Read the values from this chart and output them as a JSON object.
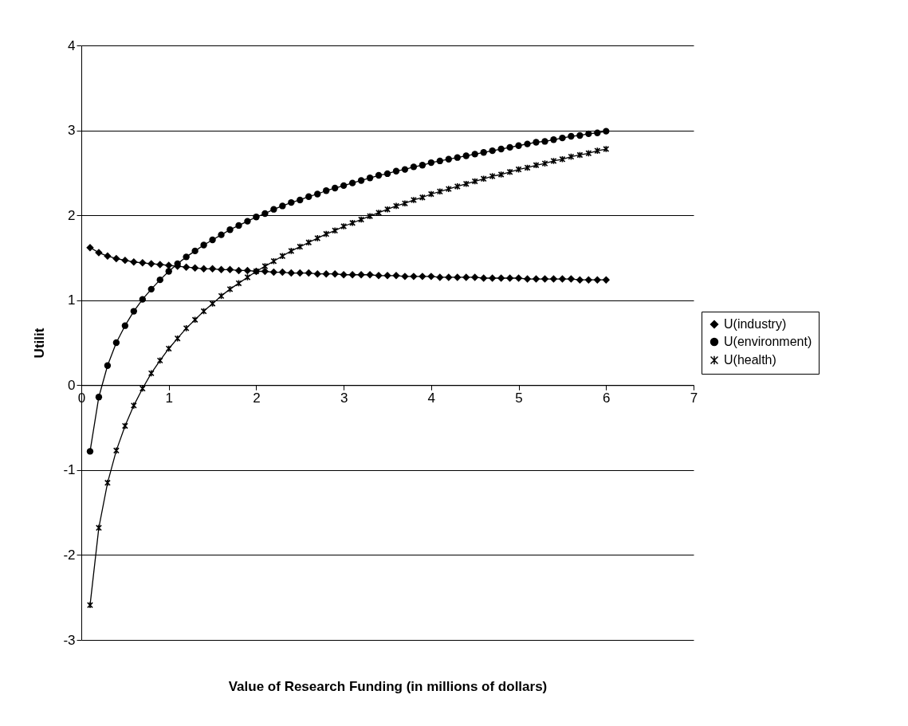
{
  "chart_data": {
    "type": "line",
    "xlabel": "Value of Research Funding (in millions of dollars)",
    "ylabel": "Utilit",
    "x": [
      0.1,
      0.2,
      0.3,
      0.4,
      0.5,
      0.6,
      0.7,
      0.8,
      0.9,
      1.0,
      1.1,
      1.2,
      1.3,
      1.4,
      1.5,
      1.6,
      1.7,
      1.8,
      1.9,
      2.0,
      2.1,
      2.2,
      2.3,
      2.4,
      2.5,
      2.6,
      2.7,
      2.8,
      2.9,
      3.0,
      3.1,
      3.2,
      3.3,
      3.4,
      3.5,
      3.6,
      3.7,
      3.8,
      3.9,
      4.0,
      4.1,
      4.2,
      4.3,
      4.4,
      4.5,
      4.6,
      4.7,
      4.8,
      4.9,
      5.0,
      5.1,
      5.2,
      5.3,
      5.4,
      5.5,
      5.6,
      5.7,
      5.8,
      5.9,
      6.0
    ],
    "series": [
      {
        "name": "U(industry)",
        "color": "#000000",
        "marker": "diamond",
        "values": [
          1.62,
          1.56,
          1.52,
          1.49,
          1.47,
          1.45,
          1.44,
          1.43,
          1.42,
          1.41,
          1.4,
          1.39,
          1.38,
          1.37,
          1.37,
          1.36,
          1.36,
          1.35,
          1.35,
          1.34,
          1.34,
          1.33,
          1.33,
          1.32,
          1.32,
          1.32,
          1.31,
          1.31,
          1.31,
          1.3,
          1.3,
          1.3,
          1.3,
          1.29,
          1.29,
          1.29,
          1.28,
          1.28,
          1.28,
          1.28,
          1.27,
          1.27,
          1.27,
          1.27,
          1.27,
          1.26,
          1.26,
          1.26,
          1.26,
          1.26,
          1.25,
          1.25,
          1.25,
          1.25,
          1.25,
          1.25,
          1.24,
          1.24,
          1.24,
          1.24
        ]
      },
      {
        "name": "U(environment)",
        "color": "#000000",
        "marker": "circle",
        "values": [
          -0.78,
          -0.14,
          0.23,
          0.5,
          0.7,
          0.87,
          1.01,
          1.13,
          1.24,
          1.34,
          1.43,
          1.51,
          1.58,
          1.65,
          1.71,
          1.77,
          1.83,
          1.88,
          1.93,
          1.98,
          2.02,
          2.07,
          2.11,
          2.15,
          2.18,
          2.22,
          2.25,
          2.29,
          2.32,
          2.35,
          2.38,
          2.41,
          2.44,
          2.47,
          2.49,
          2.52,
          2.54,
          2.57,
          2.59,
          2.62,
          2.64,
          2.66,
          2.68,
          2.7,
          2.72,
          2.74,
          2.76,
          2.78,
          2.8,
          2.82,
          2.84,
          2.86,
          2.87,
          2.89,
          2.91,
          2.93,
          2.94,
          2.96,
          2.97,
          2.99
        ]
      },
      {
        "name": "U(health)",
        "color": "#000000",
        "marker": "cross",
        "values": [
          -2.59,
          -1.68,
          -1.15,
          -0.77,
          -0.48,
          -0.24,
          -0.04,
          0.14,
          0.29,
          0.43,
          0.55,
          0.67,
          0.77,
          0.87,
          0.96,
          1.05,
          1.13,
          1.2,
          1.27,
          1.34,
          1.4,
          1.46,
          1.52,
          1.58,
          1.63,
          1.68,
          1.73,
          1.78,
          1.82,
          1.87,
          1.91,
          1.95,
          1.99,
          2.03,
          2.07,
          2.11,
          2.14,
          2.18,
          2.21,
          2.25,
          2.28,
          2.31,
          2.34,
          2.37,
          2.4,
          2.43,
          2.46,
          2.48,
          2.51,
          2.54,
          2.56,
          2.59,
          2.61,
          2.64,
          2.66,
          2.69,
          2.71,
          2.73,
          2.76,
          2.78
        ]
      }
    ],
    "xlim": [
      0,
      7
    ],
    "xticks": [
      0,
      1,
      2,
      3,
      4,
      5,
      6,
      7
    ],
    "ylim": [
      -3,
      4
    ],
    "yticks": [
      -3,
      -2,
      -1,
      0,
      1,
      2,
      3,
      4
    ],
    "grid": "y",
    "legend": "right",
    "line_style": "solid"
  }
}
